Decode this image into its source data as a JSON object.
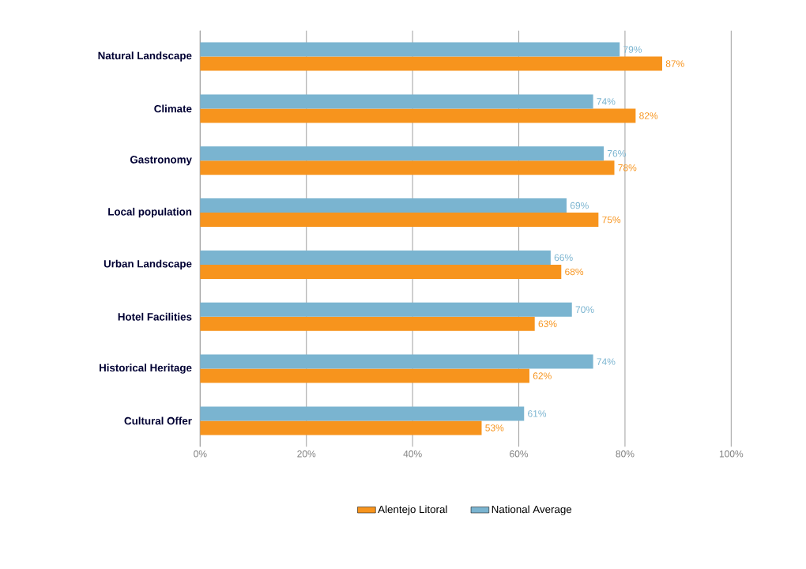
{
  "chart_data": {
    "type": "bar",
    "orientation": "horizontal",
    "categories": [
      "Natural Landscape",
      "Climate",
      "Gastronomy",
      "Local population",
      "Urban Landscape",
      "Hotel Facilities",
      "Historical Heritage",
      "Cultural Offer"
    ],
    "series": [
      {
        "name": "Alentejo Litoral",
        "color": "#f7941d",
        "values": [
          87,
          82,
          78,
          75,
          68,
          63,
          62,
          53
        ],
        "value_labels": [
          "87%",
          "82%",
          "78%",
          "75%",
          "68%",
          "63%",
          "62%",
          "53%"
        ]
      },
      {
        "name": "National Average",
        "color": "#7ab4d0",
        "values": [
          79,
          74,
          76,
          69,
          66,
          70,
          74,
          61
        ],
        "value_labels": [
          "79%",
          "74%",
          "76%",
          "69%",
          "66%",
          "70%",
          "74%",
          "61%"
        ]
      }
    ],
    "xlim": [
      0,
      100
    ],
    "xticks": [
      {
        "value": 0,
        "label": "0%"
      },
      {
        "value": 20,
        "label": "20%"
      },
      {
        "value": 40,
        "label": "40%"
      },
      {
        "value": 60,
        "label": "60%"
      },
      {
        "value": 80,
        "label": "80%"
      },
      {
        "value": 100,
        "label": "100%"
      }
    ],
    "grid": "x",
    "legend": "bottom"
  }
}
